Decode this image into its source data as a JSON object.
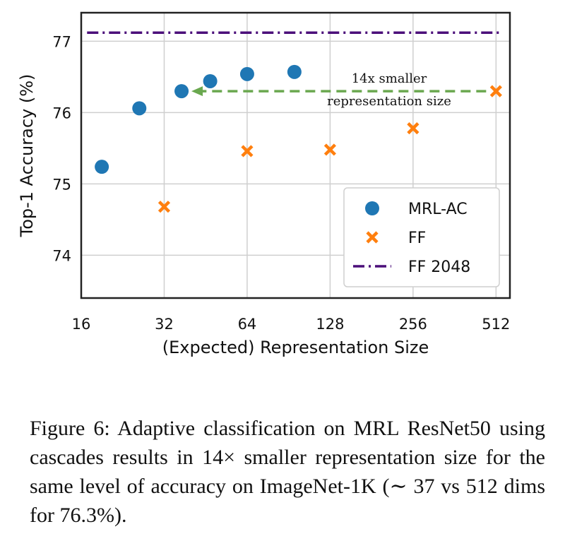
{
  "chart_data": {
    "type": "scatter",
    "x_scale": "log2",
    "xlabel": "(Expected) Representation Size",
    "ylabel": "Top-1 Accuracy (%)",
    "x_ticks": [
      16,
      32,
      64,
      128,
      256,
      512
    ],
    "x_tick_labels": [
      "16",
      "32",
      "64",
      "128",
      "256",
      "512"
    ],
    "y_ticks": [
      74,
      75,
      76,
      77
    ],
    "y_tick_labels": [
      "74",
      "75",
      "76",
      "77"
    ],
    "xlim": [
      16,
      575
    ],
    "ylim": [
      73.4,
      77.4
    ],
    "grid": true,
    "legend_position": "bottom-right",
    "series": [
      {
        "name": "MRL-AC",
        "marker": "circle",
        "color": "#1f77b4",
        "points": [
          [
            19,
            75.24
          ],
          [
            26,
            76.06
          ],
          [
            37,
            76.3
          ],
          [
            47,
            76.44
          ],
          [
            64,
            76.54
          ],
          [
            95,
            76.57
          ]
        ]
      },
      {
        "name": "FF",
        "marker": "x",
        "color": "#ff7f0e",
        "points": [
          [
            32,
            74.68
          ],
          [
            64,
            75.46
          ],
          [
            128,
            75.48
          ],
          [
            256,
            75.78
          ],
          [
            512,
            76.3
          ]
        ]
      },
      {
        "name": "FF 2048",
        "marker": "dashdot-line",
        "color": "#4b0f7a",
        "y": 77.12
      }
    ],
    "annotation": {
      "lines": [
        "14x smaller",
        "representation size"
      ],
      "arrow_from": [
        512,
        76.3
      ],
      "arrow_to": [
        37,
        76.3
      ],
      "arrow_color": "#6aa84f"
    }
  },
  "caption": {
    "text": "Figure 6:  Adaptive classification on MRL ResNet50 using cascades results in 14× smaller representation size for the same level of accuracy on ImageNet-1K (∼ 37 vs 512 dims for 76.3%)."
  }
}
